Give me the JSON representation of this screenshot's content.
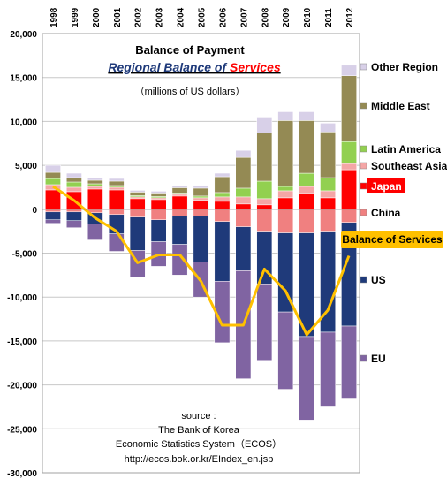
{
  "chart_data": {
    "type": "bar",
    "title": "Balance of Payment",
    "subtitle": "Regional Balance of Services",
    "subtitle_prefix": "Regional Balance of ",
    "subtitle_highlight": "Services",
    "units_note": "（millions of US dollars）",
    "categories": [
      "1998",
      "1999",
      "2000",
      "2001",
      "2002",
      "2003",
      "2004",
      "2005",
      "2006",
      "2007",
      "2008",
      "2009",
      "2010",
      "2011",
      "2012"
    ],
    "ylim": [
      -30000,
      20000
    ],
    "yticks": [
      20000,
      15000,
      10000,
      5000,
      0,
      -5000,
      -10000,
      -15000,
      -20000,
      -25000,
      -30000
    ],
    "ytick_labels": [
      "20,000",
      "15,000",
      "10,000",
      "5,000",
      "0",
      "-5,000",
      "-10,000",
      "-15,000",
      "-20,000",
      "-25,000",
      "-30,000"
    ],
    "grid": true,
    "legend_position": "right",
    "series": [
      {
        "name": "Other Region",
        "color": "#d8d0e8",
        "values": [
          800,
          500,
          300,
          300,
          200,
          200,
          200,
          300,
          400,
          800,
          1800,
          1000,
          1000,
          1000,
          1200
        ]
      },
      {
        "name": "Middle East",
        "color": "#948a54",
        "values": [
          700,
          500,
          400,
          500,
          400,
          400,
          600,
          900,
          1800,
          3500,
          5500,
          7500,
          6000,
          5200,
          7500
        ]
      },
      {
        "name": "Latin America",
        "color": "#92d050",
        "values": [
          700,
          600,
          300,
          200,
          150,
          150,
          150,
          200,
          500,
          1000,
          2000,
          500,
          1500,
          1500,
          2500
        ]
      },
      {
        "name": "Southeast Asia",
        "color": "#f4a6a6",
        "values": [
          600,
          500,
          300,
          300,
          200,
          200,
          200,
          300,
          500,
          800,
          700,
          800,
          800,
          800,
          700
        ]
      },
      {
        "name": "Japan",
        "color": "#ff0000",
        "values": [
          2200,
          2000,
          2300,
          2200,
          1200,
          1100,
          1500,
          1000,
          900,
          600,
          500,
          1300,
          1800,
          1300,
          4500
        ]
      },
      {
        "name": "China",
        "color": "#f08080",
        "values": [
          -300,
          -300,
          -400,
          -600,
          -900,
          -1200,
          -800,
          -800,
          -1400,
          -2000,
          -2500,
          -2700,
          -2700,
          -2500,
          -1500
        ]
      },
      {
        "name": "US",
        "color": "#1f3a7a",
        "values": [
          -900,
          -1000,
          -1300,
          -2200,
          -3800,
          -2500,
          -3200,
          -5200,
          -6800,
          -5000,
          -6000,
          -9000,
          -11800,
          -11500,
          -11800
        ]
      },
      {
        "name": "EU",
        "color": "#8064a2",
        "values": [
          -400,
          -800,
          -1800,
          -2000,
          -3000,
          -2800,
          -3500,
          -4000,
          -7000,
          -12300,
          -8700,
          -8800,
          -9500,
          -8500,
          -8200
        ]
      }
    ],
    "line_series": {
      "name": "Balance of Services",
      "color": "#ffc000",
      "values": [
        2600,
        1000,
        -1000,
        -2500,
        -6100,
        -5200,
        -5200,
        -8200,
        -13200,
        -13200,
        -6800,
        -9300,
        -14300,
        -11500,
        -5300
      ]
    },
    "source": {
      "label": "source :",
      "org": "The Bank of Korea",
      "system": "Economic Statistics System（ECOS）",
      "url": "http://ecos.bok.or.kr/EIndex_en.jsp"
    }
  }
}
